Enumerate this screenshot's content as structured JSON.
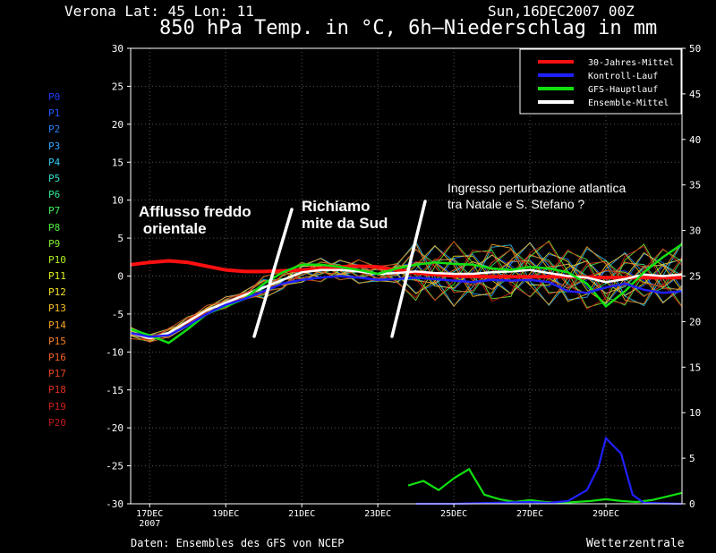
{
  "header": {
    "location": "Verona   Lat: 45 Lon: 11",
    "date": "Sun,16DEC2007 00Z",
    "title": "850 hPa Temp. in °C, 6h–Niederschlag in mm"
  },
  "footer": {
    "source": "Daten: Ensembles des GFS von NCEP",
    "brand": "Wetterzentrale"
  },
  "annotations": [
    "Afflusso freddo\n orientale",
    "Richiamo\nmite da Sud",
    "Ingresso perturbazione atlantica\ntra Natale e S. Stefano ?"
  ],
  "members": [
    {
      "label": "P0",
      "color": "#1c3cff"
    },
    {
      "label": "P1",
      "color": "#1f5bff"
    },
    {
      "label": "P2",
      "color": "#2680ff"
    },
    {
      "label": "P3",
      "color": "#2aa6ff"
    },
    {
      "label": "P4",
      "color": "#30c8f0"
    },
    {
      "label": "P5",
      "color": "#30e0d0"
    },
    {
      "label": "P6",
      "color": "#30e890"
    },
    {
      "label": "P7",
      "color": "#40f060"
    },
    {
      "label": "P8",
      "color": "#50f040"
    },
    {
      "label": "P9",
      "color": "#80f030"
    },
    {
      "label": "P10",
      "color": "#b0f020"
    },
    {
      "label": "P11",
      "color": "#e0f020"
    },
    {
      "label": "P12",
      "color": "#f0e020"
    },
    {
      "label": "P13",
      "color": "#f8c020"
    },
    {
      "label": "P14",
      "color": "#f8a020"
    },
    {
      "label": "P15",
      "color": "#f88020"
    },
    {
      "label": "P16",
      "color": "#f06020"
    },
    {
      "label": "P17",
      "color": "#e84820"
    },
    {
      "label": "P18",
      "color": "#e03020"
    },
    {
      "label": "P19",
      "color": "#d02018"
    },
    {
      "label": "P20",
      "color": "#c01818"
    }
  ],
  "chart_data": {
    "type": "line",
    "x_tick_labels": [
      "17DEC\n2007",
      "19DEC",
      "21DEC",
      "23DEC",
      "25DEC",
      "27DEC",
      "29DEC"
    ],
    "x_tick_days": [
      17,
      19,
      21,
      23,
      25,
      27,
      29
    ],
    "xlim": [
      16.5,
      31.0
    ],
    "ylim_left": [
      -30,
      30
    ],
    "yticks_left": [
      -30,
      -25,
      -20,
      -15,
      -10,
      -5,
      0,
      5,
      10,
      15,
      20,
      25,
      30
    ],
    "ylim_right": [
      0,
      50
    ],
    "yticks_right": [
      0,
      5,
      10,
      15,
      20,
      25,
      30,
      35,
      40,
      45,
      50
    ],
    "legend": {
      "placement": "top-right",
      "entries": [
        {
          "name": "30-Jahres-Mittel",
          "color": "#ff1010"
        },
        {
          "name": "Kontroll-Lauf",
          "color": "#2020ff"
        },
        {
          "name": "GFS-Hauptlauf",
          "color": "#10e010"
        },
        {
          "name": "Ensemble-Mittel",
          "color": "#ffffff"
        }
      ]
    },
    "series": [
      {
        "name": "30-Jahres-Mittel",
        "axis": "left",
        "color": "#ff1010",
        "x": [
          16.5,
          17.0,
          17.5,
          18.0,
          18.5,
          19.0,
          19.5,
          20.0,
          20.5,
          21.0,
          21.5,
          22.0,
          22.5,
          23.0,
          23.5,
          24.0,
          25.0,
          26.0,
          27.0,
          28.0,
          29.0,
          30.0,
          31.0
        ],
        "y": [
          1.5,
          1.8,
          2.0,
          1.8,
          1.3,
          0.8,
          0.6,
          0.6,
          0.7,
          0.8,
          1.0,
          1.2,
          1.3,
          1.2,
          0.8,
          0.4,
          0.0,
          -0.1,
          -0.1,
          -0.1,
          -0.2,
          -0.2,
          -0.2
        ]
      },
      {
        "name": "Ensemble-Mittel",
        "axis": "left",
        "color": "#ffffff",
        "x": [
          16.5,
          17.0,
          17.5,
          18.0,
          18.5,
          19.0,
          19.5,
          20.0,
          20.5,
          21.0,
          21.5,
          22.0,
          22.5,
          23.0,
          23.5,
          24.0,
          24.5,
          25.0,
          25.5,
          26.0,
          26.5,
          27.0,
          27.5,
          28.0,
          28.5,
          29.0,
          29.5,
          30.0,
          30.5,
          31.0
        ],
        "y": [
          -7.5,
          -8.2,
          -7.5,
          -6.0,
          -4.5,
          -3.5,
          -2.5,
          -1.5,
          -0.5,
          0.5,
          0.8,
          0.8,
          0.6,
          0.3,
          0.4,
          0.6,
          0.4,
          0.3,
          0.3,
          0.5,
          0.6,
          0.8,
          0.4,
          0.0,
          -0.2,
          -0.8,
          -0.4,
          0.2,
          0.0,
          0.2
        ]
      },
      {
        "name": "GFS-Hauptlauf",
        "axis": "left",
        "color": "#10e010",
        "x": [
          16.5,
          17.0,
          17.5,
          18.0,
          18.5,
          19.0,
          19.5,
          20.0,
          20.5,
          21.0,
          21.5,
          22.0,
          22.5,
          23.0,
          23.5,
          24.0,
          24.5,
          25.0,
          25.5,
          26.0,
          26.5,
          27.0,
          27.5,
          28.0,
          28.5,
          29.0,
          29.5,
          30.0,
          30.5,
          31.0
        ],
        "y": [
          -7.0,
          -7.8,
          -8.8,
          -7.0,
          -5.0,
          -4.0,
          -3.0,
          -1.0,
          0.5,
          1.5,
          1.5,
          1.2,
          0.8,
          0.3,
          1.0,
          1.5,
          1.8,
          1.6,
          1.5,
          1.0,
          0.8,
          1.2,
          1.0,
          0.5,
          -1.0,
          -4.0,
          -2.0,
          0.5,
          2.5,
          4.2
        ]
      },
      {
        "name": "Kontroll-Lauf",
        "axis": "left",
        "color": "#2020ff",
        "x": [
          16.5,
          17.0,
          17.5,
          18.0,
          18.5,
          19.0,
          19.5,
          20.0,
          20.5,
          21.0,
          21.5,
          22.0,
          22.5,
          23.0,
          23.5,
          24.0,
          24.5,
          25.0,
          25.5,
          26.0,
          26.5,
          27.0,
          27.5,
          28.0,
          28.5,
          29.0,
          29.5,
          30.0,
          30.5,
          31.0
        ],
        "y": [
          -7.5,
          -8.0,
          -7.8,
          -6.5,
          -5.0,
          -3.8,
          -3.0,
          -2.0,
          -1.0,
          -0.5,
          -0.2,
          0.0,
          -0.2,
          -0.5,
          -0.4,
          -0.2,
          -0.4,
          -0.6,
          -0.8,
          -0.5,
          -0.6,
          -0.5,
          -0.8,
          -2.0,
          -2.2,
          -1.5,
          -1.0,
          -1.8,
          -2.2,
          -2.0
        ]
      },
      {
        "name": "GFS-Hauptlauf",
        "axis": "right",
        "color": "#10e010",
        "x": [
          23.8,
          24.2,
          24.6,
          25.0,
          25.4,
          25.8,
          26.2,
          26.6,
          27.0,
          27.4,
          27.8,
          28.2,
          28.6,
          29.0,
          29.4,
          29.8,
          30.2,
          30.6,
          31.0
        ],
        "y": [
          2.0,
          2.5,
          1.5,
          2.8,
          3.8,
          1.0,
          0.5,
          0.2,
          0.4,
          0.2,
          0.1,
          0.2,
          0.3,
          0.5,
          0.3,
          0.2,
          0.4,
          0.8,
          1.2
        ]
      },
      {
        "name": "Kontroll-Lauf",
        "axis": "right",
        "color": "#2020ff",
        "x": [
          24.0,
          25.0,
          26.0,
          27.0,
          27.5,
          28.0,
          28.5,
          28.8,
          29.0,
          29.4,
          29.7,
          30.0,
          31.0
        ],
        "y": [
          0.0,
          0.0,
          0.1,
          0.2,
          0.1,
          0.3,
          1.5,
          4.0,
          7.2,
          5.5,
          1.0,
          0.1,
          0.0
        ]
      }
    ]
  }
}
